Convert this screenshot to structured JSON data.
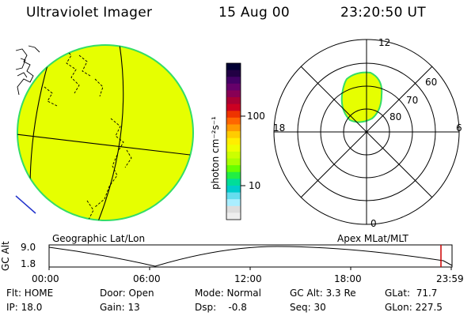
{
  "header": {
    "instrument": "Ultraviolet Imager",
    "date": "15 Aug 00",
    "time": "23:20:50 UT"
  },
  "colorbar": {
    "label": "photon cm⁻²s⁻¹",
    "ticks": [
      "100",
      "10"
    ],
    "colors": [
      "#000033",
      "#220044",
      "#440066",
      "#66006a",
      "#880055",
      "#aa0033",
      "#cc0022",
      "#ee3300",
      "#ff6600",
      "#ff9900",
      "#ffcc00",
      "#ffee00",
      "#eeff00",
      "#ccff00",
      "#aaff00",
      "#66ff00",
      "#22ee44",
      "#00dd99",
      "#00cccc",
      "#66ddee",
      "#aaeeff",
      "#dddddd",
      "#eeeeee"
    ]
  },
  "polar_plot": {
    "mlt_labels": {
      "top": "12",
      "left": "18",
      "right": "6",
      "bottom": "0"
    },
    "lat_labels": [
      "60",
      "70",
      "80"
    ]
  },
  "geo_map": {
    "fill_color": "#e6ff00",
    "edge_color": "#33dd66"
  },
  "altitude_panel": {
    "left_title": "Geographic Lat/Lon",
    "right_title": "Apex MLat/MLT",
    "y_label": "GC Alt",
    "y_ticks": [
      "9.0",
      "1.8"
    ],
    "x_ticks": [
      "00:00",
      "06:00",
      "12:00",
      "18:00",
      "23:59"
    ],
    "marker_color": "#cc0000"
  },
  "info": {
    "flt": "Flt: HOME",
    "ip": "IP: 18.0",
    "door": "Door: Open",
    "gain": "Gain: 13",
    "mode": "Mode: Normal",
    "dsp": "Dsp:    -0.8",
    "gcalt": "GC Alt: 3.3 Re",
    "seq": "Seq: 30",
    "glat": "GLat:  71.7",
    "glon": "GLon: 227.5"
  }
}
